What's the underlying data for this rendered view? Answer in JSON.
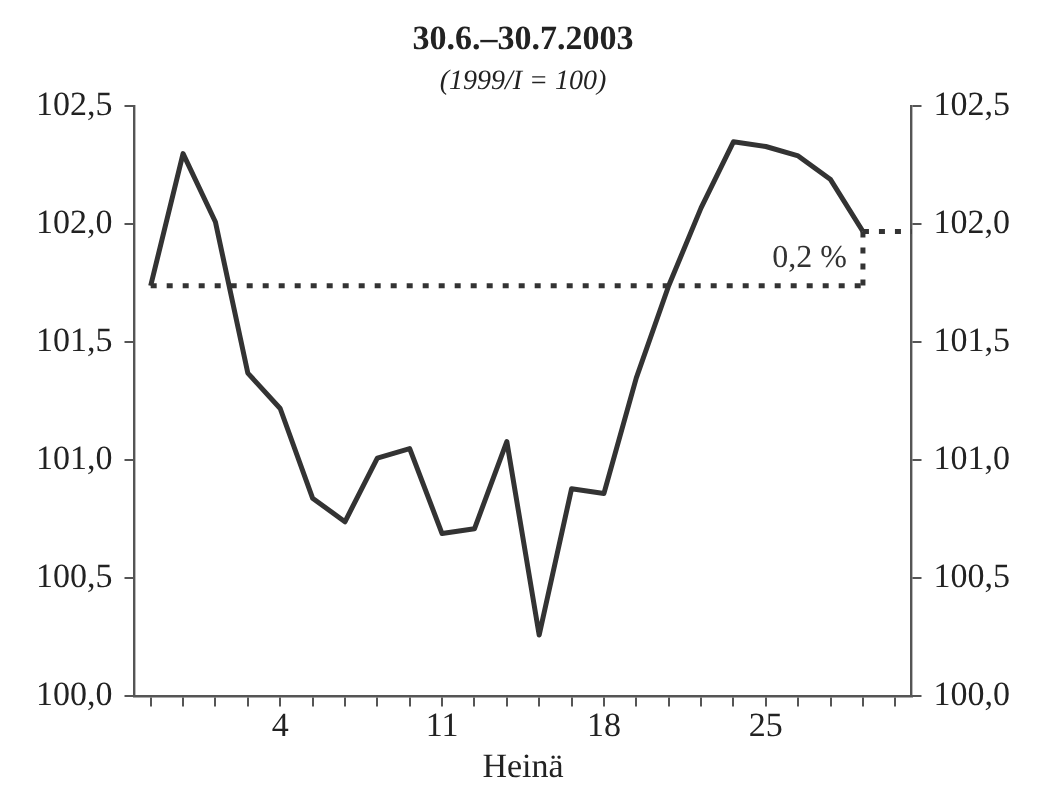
{
  "chart_data": {
    "type": "line",
    "title": "30.6.–30.7.2003",
    "subtitle": "(1999/I = 100)",
    "xlabel": "Heinä",
    "categories": [
      null,
      null,
      null,
      null,
      "4",
      null,
      null,
      null,
      null,
      "11",
      null,
      null,
      null,
      null,
      "18",
      null,
      null,
      null,
      null,
      "25",
      null,
      null,
      null,
      null
    ],
    "series": [
      {
        "color": "#333333",
        "values": [
          101.74,
          102.3,
          102.01,
          101.37,
          101.22,
          100.84,
          100.74,
          101.01,
          101.05,
          100.69,
          100.71,
          101.08,
          100.26,
          100.88,
          100.86,
          101.35,
          101.74,
          102.07,
          102.35,
          102.33,
          102.29,
          102.19,
          101.97,
          null
        ]
      }
    ],
    "ylim": [
      100,
      102.5
    ],
    "yticks": [
      {
        "value": 100,
        "label": "100,0"
      },
      {
        "value": 100.5,
        "label": "100,5"
      },
      {
        "value": 101,
        "label": "101,0"
      },
      {
        "value": 101.5,
        "label": "101,5"
      },
      {
        "value": 102,
        "label": "102,0"
      },
      {
        "value": 102.5,
        "label": "102,5"
      }
    ],
    "y2lim": [
      100,
      102.5
    ],
    "y2ticks": [
      {
        "value": 100,
        "label": "100,0"
      },
      {
        "value": 100.5,
        "label": "100,5"
      },
      {
        "value": 101,
        "label": "101,0"
      },
      {
        "value": 101.5,
        "label": "101,5"
      },
      {
        "value": 102,
        "label": "102,0"
      },
      {
        "value": 102.5,
        "label": "102,5"
      }
    ],
    "ref_lines": [
      {
        "axis": "y",
        "value": 101.74,
        "color": "#333333",
        "line_style": "dotted"
      }
    ],
    "annotations": [
      "0,2 %"
    ],
    "grid": false,
    "legend": false,
    "marker": "none",
    "line_style": "solid"
  }
}
